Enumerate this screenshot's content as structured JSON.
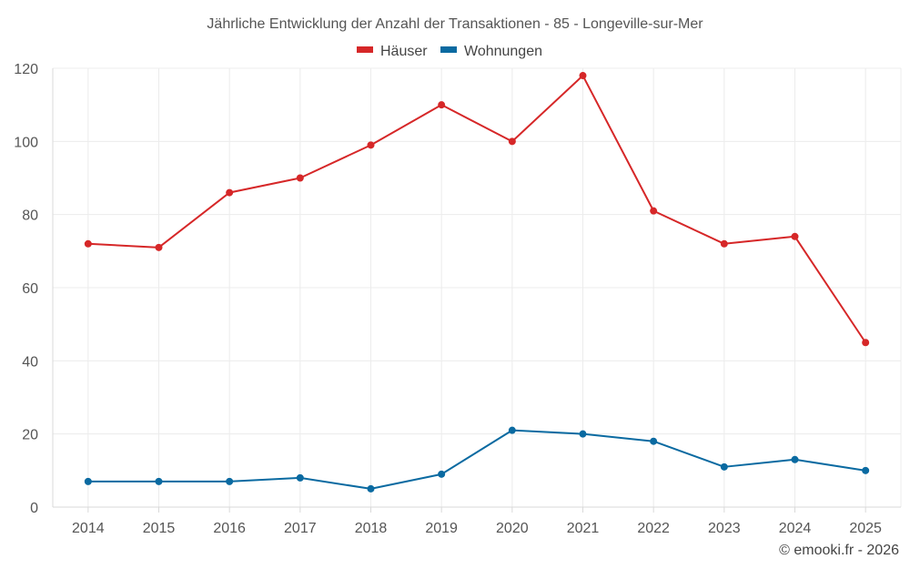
{
  "chart_data": {
    "type": "line",
    "title": "Jährliche Entwicklung der Anzahl der Transaktionen - 85 - Longeville-sur-Mer",
    "categories": [
      "2014",
      "2015",
      "2016",
      "2017",
      "2018",
      "2019",
      "2020",
      "2021",
      "2022",
      "2023",
      "2024",
      "2025"
    ],
    "series": [
      {
        "name": "Häuser",
        "color": "#d62728",
        "values": [
          72,
          71,
          86,
          90,
          99,
          110,
          100,
          118,
          81,
          72,
          74,
          45
        ]
      },
      {
        "name": "Wohnungen",
        "color": "#0a6aa1",
        "values": [
          7,
          7,
          7,
          8,
          5,
          9,
          21,
          20,
          18,
          11,
          13,
          10
        ]
      }
    ],
    "ylim": [
      0,
      120
    ],
    "yticks": [
      0,
      20,
      40,
      60,
      80,
      100,
      120
    ],
    "xlabel": "",
    "ylabel": "",
    "grid": true,
    "legend_position": "top-center"
  },
  "credit": "© emooki.fr - 2026"
}
